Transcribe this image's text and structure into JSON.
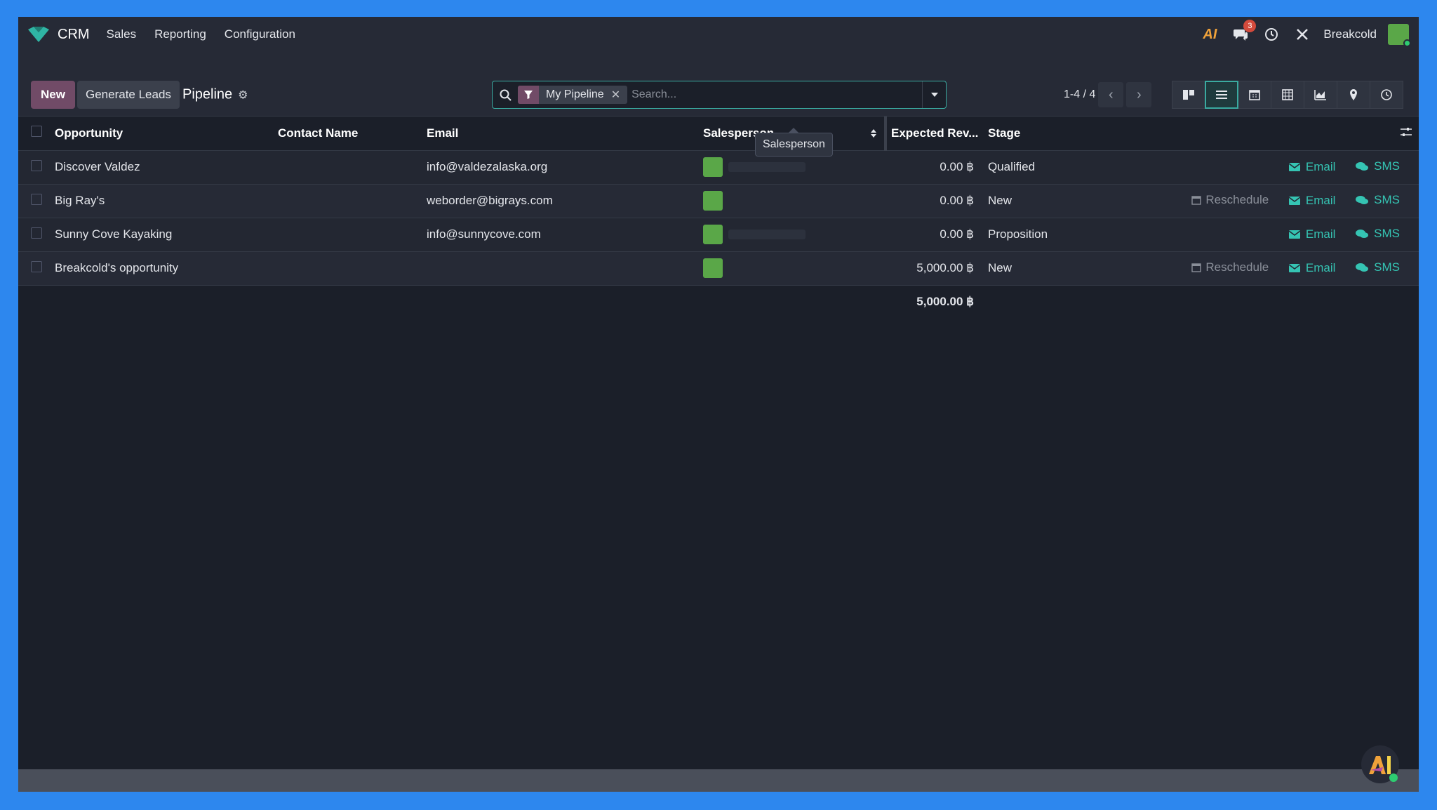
{
  "navbar": {
    "app_name": "CRM",
    "menu": [
      "Sales",
      "Reporting",
      "Configuration"
    ],
    "ai_label": "AI",
    "messages_count": "3",
    "user_name": "Breakcold",
    "brand_color": "#3aaaa0"
  },
  "control_panel": {
    "new_label": "New",
    "generate_leads_label": "Generate Leads",
    "breadcrumb": "Pipeline",
    "search": {
      "facet_label": "My Pipeline",
      "placeholder": "Search..."
    },
    "pager": "1-4 / 4",
    "views": [
      "kanban-icon",
      "list-icon",
      "calendar-icon",
      "pivot-icon",
      "graph-icon",
      "map-icon",
      "activity-icon"
    ],
    "active_view": "list-icon"
  },
  "table": {
    "columns": {
      "opportunity": "Opportunity",
      "contact_name": "Contact Name",
      "email": "Email",
      "salesperson": "Salesperson",
      "expected_revenue": "Expected Rev...",
      "stage": "Stage"
    },
    "rows": [
      {
        "opportunity": "Discover Valdez",
        "contact_name": "",
        "email": "info@valdezalaska.org",
        "revenue": "0.00 ฿",
        "stage": "Qualified",
        "reschedule": "",
        "email_action": "Email",
        "sms_action": "SMS"
      },
      {
        "opportunity": "Big Ray's",
        "contact_name": "",
        "email": "weborder@bigrays.com",
        "revenue": "0.00 ฿",
        "stage": "New",
        "reschedule": "Reschedule",
        "email_action": "Email",
        "sms_action": "SMS"
      },
      {
        "opportunity": "Sunny Cove Kayaking",
        "contact_name": "",
        "email": "info@sunnycove.com",
        "revenue": "0.00 ฿",
        "stage": "Proposition",
        "reschedule": "",
        "email_action": "Email",
        "sms_action": "SMS"
      },
      {
        "opportunity": "Breakcold's opportunity",
        "contact_name": "",
        "email": "",
        "revenue": "5,000.00 ฿",
        "stage": "New",
        "reschedule": "Reschedule",
        "email_action": "Email",
        "sms_action": "SMS"
      }
    ],
    "total_revenue": "5,000.00 ฿"
  },
  "tooltip": "Salesperson"
}
